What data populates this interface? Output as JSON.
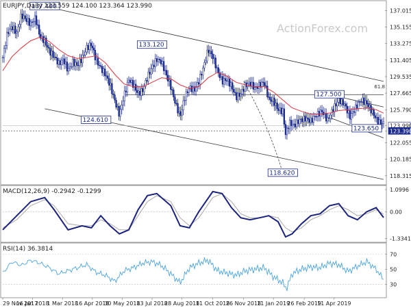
{
  "chart_data": [
    {
      "type": "candlestick",
      "header": "EURJPY,Daily  123.559 124.100 123.364 123.990",
      "watermark": "ActionForex.com",
      "ylim": [
        117.6,
        137.9
      ],
      "y_ticks": [
        137.015,
        135.155,
        133.275,
        131.405,
        129.535,
        127.665,
        125.79,
        123.99,
        123.39,
        122.055,
        120.185,
        118.315
      ],
      "last_price": 123.99,
      "current_price": 123.39,
      "colors": {
        "candle": "#1a2a8c",
        "ma": "#e0343a",
        "trend": "#333333",
        "price_box": "#1a2a8c"
      },
      "close_points": [
        [
          0,
          131.7
        ],
        [
          5,
          134.5
        ],
        [
          10,
          135.2
        ],
        [
          15,
          134.5
        ],
        [
          20,
          136.5
        ],
        [
          25,
          136.0
        ],
        [
          30,
          135.5
        ],
        [
          35,
          136.2
        ],
        [
          40,
          134.0
        ],
        [
          45,
          133.6
        ],
        [
          50,
          132.4
        ],
        [
          55,
          131.8
        ],
        [
          60,
          131.0
        ],
        [
          65,
          131.5
        ],
        [
          70,
          130.2
        ],
        [
          75,
          131.2
        ],
        [
          80,
          130.8
        ],
        [
          85,
          131.6
        ],
        [
          90,
          132.8
        ],
        [
          95,
          133.2
        ],
        [
          100,
          131.4
        ],
        [
          105,
          130.5
        ],
        [
          110,
          129.8
        ],
        [
          115,
          128.6
        ],
        [
          120,
          126.8
        ],
        [
          125,
          125.2
        ],
        [
          130,
          127.4
        ],
        [
          135,
          129.2
        ],
        [
          140,
          128.6
        ],
        [
          145,
          127.6
        ],
        [
          150,
          128.0
        ],
        [
          155,
          129.5
        ],
        [
          160,
          130.6
        ],
        [
          165,
          131.5
        ],
        [
          170,
          131.2
        ],
        [
          175,
          129.8
        ],
        [
          180,
          128.4
        ],
        [
          185,
          126.5
        ],
        [
          190,
          125.0
        ],
        [
          195,
          127.2
        ],
        [
          200,
          128.3
        ],
        [
          205,
          128.0
        ],
        [
          210,
          129.0
        ],
        [
          215,
          130.6
        ],
        [
          220,
          132.6
        ],
        [
          225,
          131.8
        ],
        [
          230,
          130.2
        ],
        [
          235,
          129.0
        ],
        [
          240,
          129.2
        ],
        [
          245,
          128.5
        ],
        [
          250,
          127.2
        ],
        [
          255,
          127.6
        ],
        [
          260,
          128.6
        ],
        [
          265,
          128.8
        ],
        [
          270,
          128.2
        ],
        [
          275,
          128.6
        ],
        [
          280,
          128.9
        ],
        [
          285,
          127.0
        ],
        [
          290,
          126.8
        ],
        [
          295,
          125.8
        ],
        [
          300,
          125.6
        ],
        [
          303,
          123.0
        ],
        [
          307,
          124.3
        ],
        [
          312,
          124.0
        ],
        [
          318,
          124.6
        ],
        [
          324,
          124.8
        ],
        [
          330,
          124.5
        ],
        [
          336,
          125.2
        ],
        [
          342,
          125.6
        ],
        [
          348,
          124.6
        ],
        [
          354,
          125.9
        ],
        [
          360,
          126.9
        ],
        [
          366,
          126.4
        ],
        [
          372,
          125.0
        ],
        [
          378,
          126.0
        ],
        [
          384,
          126.9
        ],
        [
          390,
          126.5
        ],
        [
          396,
          125.5
        ],
        [
          402,
          124.4
        ],
        [
          408,
          124.2
        ]
      ],
      "ma_points": [
        [
          0,
          130.2
        ],
        [
          10,
          131.8
        ],
        [
          20,
          132.8
        ],
        [
          30,
          133.6
        ],
        [
          40,
          134.0
        ],
        [
          50,
          133.5
        ],
        [
          60,
          132.6
        ],
        [
          70,
          131.9
        ],
        [
          80,
          131.6
        ],
        [
          90,
          131.7
        ],
        [
          100,
          131.9
        ],
        [
          110,
          131.1
        ],
        [
          120,
          129.8
        ],
        [
          130,
          128.7
        ],
        [
          140,
          128.4
        ],
        [
          150,
          128.4
        ],
        [
          160,
          128.9
        ],
        [
          170,
          129.4
        ],
        [
          180,
          129.3
        ],
        [
          190,
          128.6
        ],
        [
          200,
          128.2
        ],
        [
          210,
          128.4
        ],
        [
          220,
          129.4
        ],
        [
          230,
          130.0
        ],
        [
          240,
          129.6
        ],
        [
          250,
          128.9
        ],
        [
          260,
          128.6
        ],
        [
          270,
          128.4
        ],
        [
          280,
          128.4
        ],
        [
          290,
          127.8
        ],
        [
          300,
          126.9
        ],
        [
          310,
          126.0
        ],
        [
          320,
          125.6
        ],
        [
          330,
          125.3
        ],
        [
          340,
          125.3
        ],
        [
          350,
          125.4
        ],
        [
          360,
          125.7
        ],
        [
          370,
          125.8
        ],
        [
          380,
          125.9
        ],
        [
          390,
          126.0
        ],
        [
          400,
          125.8
        ],
        [
          408,
          125.4
        ]
      ],
      "annotations": [
        {
          "label": "137.490",
          "price": 137.49,
          "x": 45
        },
        {
          "label": "133.120",
          "price": 133.12,
          "x": 160
        },
        {
          "label": "124.610",
          "price": 124.61,
          "x": 100
        },
        {
          "label": "118.620",
          "price": 118.62,
          "x": 300
        },
        {
          "label": "127.500",
          "price": 127.5,
          "x": 350
        },
        {
          "label": "123.650",
          "price": 123.65,
          "x": 390
        }
      ],
      "fib_label": "61.8"
    },
    {
      "type": "line",
      "header": "MACD(12,26,9) -0.2942 -0.1299",
      "ylim": [
        -1.45,
        1.2
      ],
      "y_ticks": [
        1.0996,
        0.0,
        -1.3341
      ],
      "macd": [
        [
          0,
          -0.9
        ],
        [
          15,
          -0.2
        ],
        [
          30,
          0.5
        ],
        [
          45,
          0.7
        ],
        [
          55,
          0.1
        ],
        [
          70,
          -0.9
        ],
        [
          85,
          -0.7
        ],
        [
          95,
          -0.8
        ],
        [
          105,
          -0.2
        ],
        [
          115,
          -0.7
        ],
        [
          125,
          -1.1
        ],
        [
          135,
          -0.9
        ],
        [
          145,
          0.1
        ],
        [
          155,
          0.8
        ],
        [
          165,
          0.9
        ],
        [
          180,
          0.3
        ],
        [
          190,
          -0.7
        ],
        [
          200,
          -0.8
        ],
        [
          210,
          0.0
        ],
        [
          225,
          1.0
        ],
        [
          235,
          0.9
        ],
        [
          245,
          0.2
        ],
        [
          255,
          -0.3
        ],
        [
          265,
          -0.4
        ],
        [
          275,
          -0.3
        ],
        [
          285,
          -0.2
        ],
        [
          295,
          -0.5
        ],
        [
          303,
          -1.25
        ],
        [
          310,
          -1.1
        ],
        [
          320,
          -0.6
        ],
        [
          330,
          -0.2
        ],
        [
          340,
          -0.1
        ],
        [
          350,
          0.3
        ],
        [
          360,
          0.4
        ],
        [
          370,
          -0.2
        ],
        [
          380,
          -0.4
        ],
        [
          390,
          0.0
        ],
        [
          400,
          0.2
        ],
        [
          408,
          -0.29
        ]
      ],
      "signal": [
        [
          0,
          -0.8
        ],
        [
          15,
          -0.4
        ],
        [
          30,
          0.3
        ],
        [
          45,
          0.6
        ],
        [
          55,
          0.3
        ],
        [
          70,
          -0.6
        ],
        [
          85,
          -0.7
        ],
        [
          95,
          -0.7
        ],
        [
          105,
          -0.4
        ],
        [
          115,
          -0.6
        ],
        [
          125,
          -0.9
        ],
        [
          135,
          -0.9
        ],
        [
          145,
          -0.2
        ],
        [
          155,
          0.5
        ],
        [
          165,
          0.8
        ],
        [
          180,
          0.5
        ],
        [
          190,
          -0.3
        ],
        [
          200,
          -0.7
        ],
        [
          210,
          -0.3
        ],
        [
          225,
          0.7
        ],
        [
          235,
          0.9
        ],
        [
          245,
          0.5
        ],
        [
          255,
          -0.1
        ],
        [
          265,
          -0.3
        ],
        [
          275,
          -0.3
        ],
        [
          285,
          -0.2
        ],
        [
          295,
          -0.3
        ],
        [
          303,
          -0.8
        ],
        [
          310,
          -1.0
        ],
        [
          320,
          -0.8
        ],
        [
          330,
          -0.4
        ],
        [
          340,
          -0.2
        ],
        [
          350,
          0.1
        ],
        [
          360,
          0.3
        ],
        [
          370,
          0.1
        ],
        [
          380,
          -0.2
        ],
        [
          390,
          -0.1
        ],
        [
          400,
          0.1
        ],
        [
          408,
          -0.13
        ]
      ]
    },
    {
      "type": "line",
      "header": "RSI(14) 36.3814",
      "ylim": [
        15,
        82
      ],
      "y_ticks": [
        70,
        50,
        30
      ],
      "rsi": [
        [
          0,
          45
        ],
        [
          10,
          60
        ],
        [
          20,
          55
        ],
        [
          30,
          62
        ],
        [
          40,
          58
        ],
        [
          50,
          52
        ],
        [
          60,
          44
        ],
        [
          70,
          48
        ],
        [
          80,
          52
        ],
        [
          90,
          56
        ],
        [
          100,
          46
        ],
        [
          110,
          42
        ],
        [
          120,
          34
        ],
        [
          130,
          48
        ],
        [
          140,
          52
        ],
        [
          150,
          58
        ],
        [
          160,
          60
        ],
        [
          170,
          55
        ],
        [
          180,
          44
        ],
        [
          190,
          32
        ],
        [
          200,
          52
        ],
        [
          210,
          58
        ],
        [
          220,
          62
        ],
        [
          230,
          48
        ],
        [
          240,
          45
        ],
        [
          250,
          42
        ],
        [
          260,
          48
        ],
        [
          270,
          50
        ],
        [
          280,
          52
        ],
        [
          290,
          40
        ],
        [
          300,
          32
        ],
        [
          304,
          24
        ],
        [
          310,
          44
        ],
        [
          320,
          50
        ],
        [
          330,
          53
        ],
        [
          340,
          52
        ],
        [
          350,
          58
        ],
        [
          360,
          56
        ],
        [
          370,
          47
        ],
        [
          380,
          54
        ],
        [
          390,
          60
        ],
        [
          400,
          50
        ],
        [
          408,
          36.38
        ]
      ]
    }
  ],
  "x_axis": {
    "labels": [
      "29 Nov 2017",
      "16 Jan 2018",
      "1 Mar 2018",
      "16 Apr 2018",
      "30 May 2018",
      "13 Jul 2018",
      "28 Aug 2018",
      "11 Oct 2018",
      "26 Nov 2018",
      "11 Jan 2019",
      "26 Feb 2019",
      "11 Apr 2019"
    ],
    "label_x": [
      0,
      32,
      64,
      96,
      128,
      160,
      192,
      225,
      258,
      290,
      323,
      355
    ],
    "x_max": 408
  }
}
